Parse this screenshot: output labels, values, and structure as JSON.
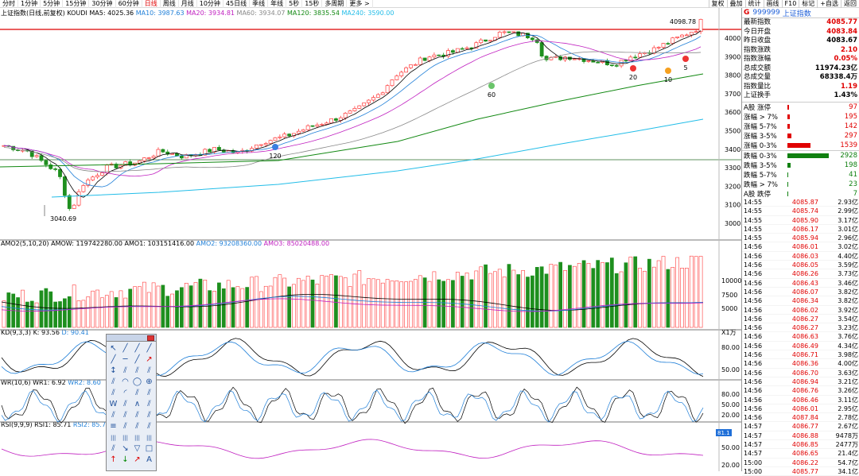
{
  "topbar": {
    "periods": [
      "分时",
      "1分钟",
      "5分钟",
      "15分钟",
      "30分钟",
      "60分钟",
      "日线",
      "周线",
      "月线",
      "10分钟",
      "45日线",
      "季线",
      "年线",
      "5秒",
      "15秒",
      "多周期",
      "更多 >"
    ],
    "active_period": "日线",
    "tools": [
      "复权",
      "叠加",
      "统计",
      "画线",
      "F10",
      "标记",
      "+自选",
      "返回"
    ]
  },
  "indicator_line": {
    "title": "上证指数(日线,前复权) KOUDI",
    "ma5": "MA5: 4025.36",
    "ma10": "MA10: 3987.63",
    "ma20": "MA20: 3934.81",
    "ma60": "MA60: 3934.07",
    "ma120": "MA120: 3835.54",
    "ma240": "MA240: 3590.00"
  },
  "price_labels": {
    "high": "4098.78",
    "low": "3040.69"
  },
  "price_axis": [
    "4000",
    "3900",
    "3800",
    "3700",
    "3600",
    "3500",
    "3400",
    "3300",
    "3200",
    "3100",
    "3000"
  ],
  "ma_markers": [
    "120",
    "60",
    "20",
    "10",
    "5"
  ],
  "amo_legend": {
    "title": "AMO2(5,10,20)",
    "amow": "AMOW: 119742280.00",
    "amo1": "AMO1: 103151416.00",
    "amo2": "AMO2: 93208360.00",
    "amo3": "AMO3: 85020488.00"
  },
  "amo_axis": [
    "10000",
    "7500",
    "5000",
    "X1万"
  ],
  "kd_legend": {
    "title": "KD(9,3,3)",
    "k": "K: 93.56",
    "d": "D: 90.41"
  },
  "kd_axis": [
    "80.00",
    "50.00"
  ],
  "wr_legend": {
    "title": "WR(10,6)",
    "wr1": "WR1: 6.92",
    "wr2": "WR2: 8.60"
  },
  "wr_axis": [
    "80.00",
    "50.00",
    "20.00"
  ],
  "rsi_legend": {
    "title": "RSI(9,9,9)",
    "rsi1": "RSI1: 85.71",
    "rsi2": "RSI2: 85.71"
  },
  "rsi_axis": [
    "81.1",
    "50.00",
    "20.00"
  ],
  "panel": {
    "code": "999999",
    "name": "上证指数",
    "mark": "G",
    "stats": [
      {
        "label": "最新指数",
        "value": "4085.77",
        "color": "red"
      },
      {
        "label": "今日开盘",
        "value": "4083.84",
        "color": "red"
      },
      {
        "label": "昨日收盘",
        "value": "4083.67",
        "color": "blk"
      },
      {
        "label": "指数涨跌",
        "value": "2.10",
        "color": "red"
      },
      {
        "label": "指数涨幅",
        "value": "0.05%",
        "color": "red"
      },
      {
        "label": "总成交额",
        "value": "11974.23亿",
        "color": "blk"
      },
      {
        "label": "总成交量",
        "value": "68338.4万",
        "color": "blk"
      },
      {
        "label": "指数量比",
        "value": "1.19",
        "color": "red"
      },
      {
        "label": "上证换手",
        "value": "1.43%",
        "color": "blk"
      }
    ],
    "breadth_up": [
      {
        "label": "A股 涨停",
        "value": "97",
        "pct": 0.03
      },
      {
        "label": "涨幅 > 7%",
        "value": "195",
        "pct": 0.06
      },
      {
        "label": "涨幅 5-7%",
        "value": "142",
        "pct": 0.05
      },
      {
        "label": "涨幅 3-5%",
        "value": "297",
        "pct": 0.1
      },
      {
        "label": "涨幅 0-3%",
        "value": "1539",
        "pct": 0.55
      }
    ],
    "breadth_down": [
      {
        "label": "跌幅 0-3%",
        "value": "2928",
        "pct": 1.0
      },
      {
        "label": "跌幅 3-5%",
        "value": "198",
        "pct": 0.07
      },
      {
        "label": "跌幅 5-7%",
        "value": "41",
        "pct": 0.015
      },
      {
        "label": "跌幅 > 7%",
        "value": "23",
        "pct": 0.01
      },
      {
        "label": "A股 跌停",
        "value": "7",
        "pct": 0.005
      }
    ],
    "trades": [
      {
        "t": "14:55",
        "p": "4085.87",
        "q": "2.93亿"
      },
      {
        "t": "14:55",
        "p": "4085.74",
        "q": "2.99亿"
      },
      {
        "t": "14:55",
        "p": "4085.90",
        "q": "3.17亿"
      },
      {
        "t": "14:55",
        "p": "4086.17",
        "q": "3.01亿"
      },
      {
        "t": "14:55",
        "p": "4085.94",
        "q": "2.96亿"
      },
      {
        "t": "14:56",
        "p": "4086.01",
        "q": "3.02亿"
      },
      {
        "t": "14:56",
        "p": "4086.03",
        "q": "4.40亿"
      },
      {
        "t": "14:56",
        "p": "4086.05",
        "q": "3.59亿"
      },
      {
        "t": "14:56",
        "p": "4086.26",
        "q": "3.73亿"
      },
      {
        "t": "14:56",
        "p": "4086.43",
        "q": "3.46亿"
      },
      {
        "t": "14:56",
        "p": "4086.07",
        "q": "3.82亿"
      },
      {
        "t": "14:56",
        "p": "4086.34",
        "q": "3.82亿"
      },
      {
        "t": "14:56",
        "p": "4086.02",
        "q": "3.92亿"
      },
      {
        "t": "14:56",
        "p": "4086.27",
        "q": "3.54亿"
      },
      {
        "t": "14:56",
        "p": "4086.27",
        "q": "3.23亿"
      },
      {
        "t": "14:56",
        "p": "4086.63",
        "q": "3.76亿"
      },
      {
        "t": "14:56",
        "p": "4086.49",
        "q": "4.34亿"
      },
      {
        "t": "14:56",
        "p": "4086.71",
        "q": "3.98亿"
      },
      {
        "t": "14:56",
        "p": "4086.36",
        "q": "4.00亿"
      },
      {
        "t": "14:56",
        "p": "4086.70",
        "q": "3.63亿"
      },
      {
        "t": "14:56",
        "p": "4086.94",
        "q": "3.21亿"
      },
      {
        "t": "14:56",
        "p": "4086.76",
        "q": "3.26亿"
      },
      {
        "t": "14:56",
        "p": "4086.46",
        "q": "3.11亿"
      },
      {
        "t": "14:56",
        "p": "4086.01",
        "q": "2.95亿"
      },
      {
        "t": "14:56",
        "p": "4087.84",
        "q": "2.78亿"
      },
      {
        "t": "14:57",
        "p": "4086.77",
        "q": "2.67亿"
      },
      {
        "t": "14:57",
        "p": "4086.88",
        "q": "9478万"
      },
      {
        "t": "14:57",
        "p": "4086.85",
        "q": "2477万"
      },
      {
        "t": "14:57",
        "p": "4086.65",
        "q": "21.4亿"
      },
      {
        "t": "15:00",
        "p": "4086.22",
        "q": "54.7亿"
      },
      {
        "t": "15:00",
        "p": "4085.77",
        "q": "34.1亿"
      }
    ]
  },
  "colors": {
    "up": "#ff3b3b",
    "down": "#1e8f1e",
    "ma5": "#000000",
    "ma10": "#1f7fd8",
    "ma20": "#c020c0",
    "ma60": "#888888",
    "ma120": "#118811",
    "ma240": "#22bde8"
  }
}
